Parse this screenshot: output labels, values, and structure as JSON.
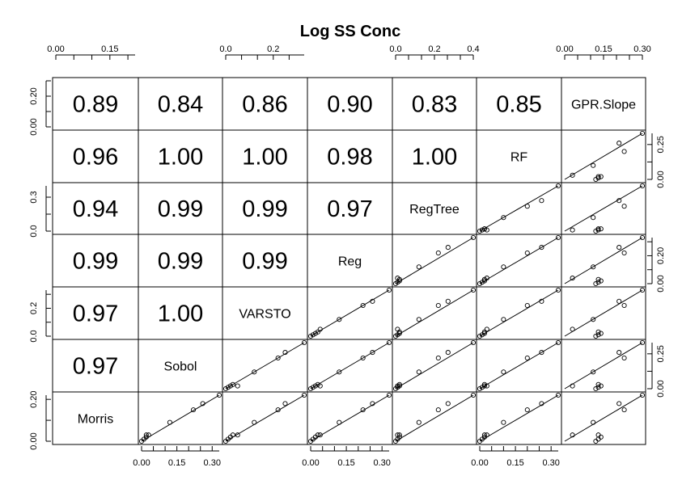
{
  "chart_data": {
    "type": "scatter",
    "subtype": "pairs-matrix",
    "title": "Log SS Conc",
    "variables": [
      "Morris",
      "Sobol",
      "VARSTO",
      "Reg",
      "RegTree",
      "RF",
      "GPR.Slope"
    ],
    "variable_ranges": [
      [
        0,
        0.22
      ],
      [
        0,
        0.33
      ],
      [
        0,
        0.33
      ],
      [
        0,
        0.33
      ],
      [
        0,
        0.4
      ],
      [
        0,
        0.33
      ],
      [
        0,
        0.3
      ]
    ],
    "upper_panels": "correlation",
    "lower_panels": "scatter-with-fit-line",
    "correlations": {
      "Morris|Sobol": "0.97",
      "Morris|VARSTO": "0.97",
      "Morris|Reg": "0.99",
      "Morris|RegTree": "0.94",
      "Morris|RF": "0.96",
      "Morris|GPR.Slope": "0.89",
      "Sobol|VARSTO": "1.00",
      "Sobol|Reg": "0.99",
      "Sobol|RegTree": "0.99",
      "Sobol|RF": "1.00",
      "Sobol|GPR.Slope": "0.84",
      "VARSTO|Reg": "0.99",
      "VARSTO|RegTree": "0.99",
      "VARSTO|RF": "1.00",
      "VARSTO|GPR.Slope": "0.86",
      "Reg|RegTree": "0.97",
      "Reg|RF": "0.98",
      "Reg|GPR.Slope": "0.90",
      "RegTree|RF": "1.00",
      "RegTree|GPR.Slope": "0.83",
      "RF|GPR.Slope": "0.85"
    },
    "observations": {
      "Morris": [
        0.0,
        0.01,
        0.02,
        0.03,
        0.09,
        0.15,
        0.18,
        0.22,
        0.03
      ],
      "Sobol": [
        0.0,
        0.01,
        0.02,
        0.03,
        0.12,
        0.22,
        0.26,
        0.33,
        0.02
      ],
      "VARSTO": [
        0.0,
        0.01,
        0.02,
        0.03,
        0.12,
        0.22,
        0.25,
        0.33,
        0.05
      ],
      "Reg": [
        0.0,
        0.01,
        0.02,
        0.03,
        0.12,
        0.22,
        0.26,
        0.33,
        0.04
      ],
      "RegTree": [
        0.0,
        0.01,
        0.02,
        0.02,
        0.12,
        0.22,
        0.27,
        0.4,
        0.01
      ],
      "RF": [
        0.0,
        0.01,
        0.02,
        0.02,
        0.1,
        0.2,
        0.26,
        0.33,
        0.03
      ],
      "GPR.Slope": [
        0.12,
        0.13,
        0.14,
        0.13,
        0.11,
        0.23,
        0.21,
        0.3,
        0.03
      ]
    },
    "top_axis_ticks": [
      {
        "column": "Morris",
        "labels": [
          "0.00",
          "0.15"
        ]
      },
      {
        "column": "VARSTO",
        "labels": [
          "0.0",
          "0.2"
        ]
      },
      {
        "column": "RegTree",
        "labels": [
          "0.0",
          "0.2",
          "0.4"
        ]
      },
      {
        "column": "GPR.Slope",
        "labels": [
          "0.00",
          "0.15",
          "0.30"
        ]
      }
    ],
    "bottom_axis_ticks": [
      {
        "column": "Sobol",
        "labels": [
          "0.00",
          "0.15",
          "0.30"
        ]
      },
      {
        "column": "Reg",
        "labels": [
          "0.00",
          "0.15",
          "0.30"
        ]
      },
      {
        "column": "RF",
        "labels": [
          "0.00",
          "0.15",
          "0.30"
        ]
      }
    ],
    "left_axis_ticks": [
      {
        "row": "GPR.Slope",
        "labels": [
          "0.00",
          "0.20"
        ]
      },
      {
        "row": "RegTree",
        "labels": [
          "0.0",
          "0.3"
        ]
      },
      {
        "row": "VARSTO",
        "labels": [
          "0.0",
          "0.2"
        ]
      },
      {
        "row": "Morris",
        "labels": [
          "0.00",
          "0.20"
        ]
      }
    ],
    "right_axis_ticks": [
      {
        "row": "RF",
        "labels": [
          "0.00",
          "0.25"
        ]
      },
      {
        "row": "Reg",
        "labels": [
          "0.00",
          "0.20"
        ]
      },
      {
        "row": "Sobol",
        "labels": [
          "0.00",
          "0.25"
        ]
      }
    ]
  }
}
